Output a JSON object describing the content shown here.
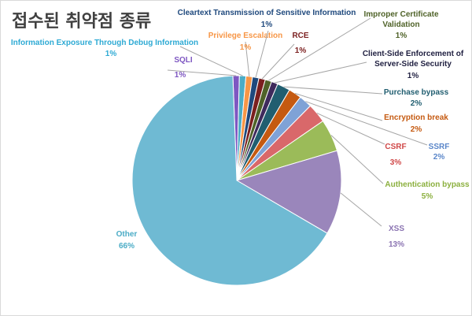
{
  "chart_data": {
    "type": "pie",
    "title": "접수된 취약점 종류",
    "slices": [
      {
        "label": "SQLI",
        "value": 1,
        "pct_text": "1%",
        "color": "#7e57c2"
      },
      {
        "label": "Information Exposure Through Debug Information",
        "value": 1,
        "pct_text": "1%",
        "color": "#4bacc6"
      },
      {
        "label": "Privilege Escalation",
        "value": 1,
        "pct_text": "1%",
        "color": "#f79646"
      },
      {
        "label": "Cleartext Transmission of Sensitive Information",
        "value": 1,
        "pct_text": "1%",
        "color": "#1f497d"
      },
      {
        "label": "RCE",
        "value": 1,
        "pct_text": "1%",
        "color": "#7b1f1f"
      },
      {
        "label": "Improper Certificate Validation",
        "value": 1,
        "pct_text": "1%",
        "color": "#4f6228"
      },
      {
        "label": "Client-Side Enforcement of Server-Side Security",
        "value": 1,
        "pct_text": "1%",
        "color": "#3f2a5c"
      },
      {
        "label": "Purchase bypass",
        "value": 2,
        "pct_text": "2%",
        "color": "#215e70"
      },
      {
        "label": "Encryption break",
        "value": 2,
        "pct_text": "2%",
        "color": "#c55a11"
      },
      {
        "label": "SSRF",
        "value": 2,
        "pct_text": "2%",
        "color": "#7fa2d6"
      },
      {
        "label": "CSRF",
        "value": 3,
        "pct_text": "3%",
        "color": "#d9686a"
      },
      {
        "label": "Authentication bypass",
        "value": 5,
        "pct_text": "5%",
        "color": "#9bbb59"
      },
      {
        "label": "XSS",
        "value": 13,
        "pct_text": "13%",
        "color": "#9a86bb"
      },
      {
        "label": "Other",
        "value": 66,
        "pct_text": "66%",
        "color": "#6fbad3"
      }
    ]
  }
}
